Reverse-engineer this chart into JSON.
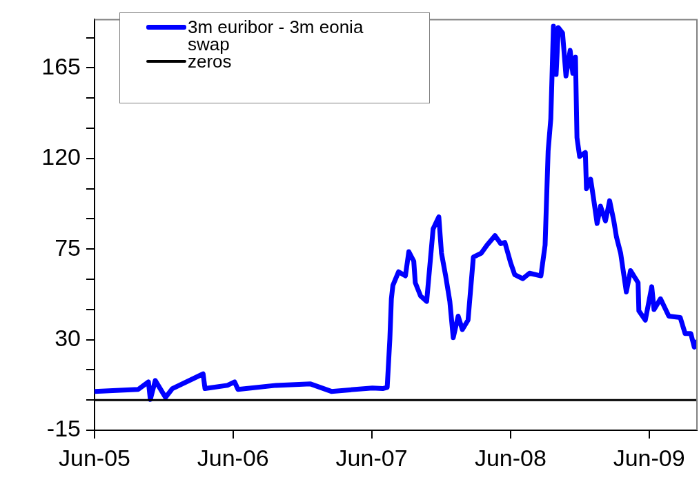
{
  "chart_data": {
    "type": "line",
    "xlim": [
      "2005-06-01",
      "2009-10-05"
    ],
    "xticks": [
      {
        "value": "2005-06-01",
        "label": "Jun-05"
      },
      {
        "value": "2006-06-01",
        "label": "Jun-06"
      },
      {
        "value": "2007-06-01",
        "label": "Jun-07"
      },
      {
        "value": "2008-06-01",
        "label": "Jun-08"
      },
      {
        "value": "2009-06-01",
        "label": "Jun-09"
      }
    ],
    "ylim": [
      -15,
      189
    ],
    "yticks": [
      -15,
      {
        "value": 0,
        "label": null
      },
      {
        "value": 15,
        "label": null
      },
      30,
      {
        "value": 45,
        "label": null
      },
      {
        "value": 60,
        "label": null
      },
      75,
      {
        "value": 90,
        "label": null
      },
      {
        "value": 105,
        "label": null
      },
      120,
      {
        "value": 135,
        "label": null
      },
      {
        "value": 150,
        "label": null
      },
      165,
      {
        "value": 180,
        "label": null
      }
    ],
    "grid": false,
    "legend": "top left",
    "marker": "none",
    "line_style": "solid",
    "annotations": [
      "swap"
    ],
    "series": [
      {
        "name": "3m euribor - 3m eonia",
        "color": "#0000ff",
        "x": [
          "2005-06-01",
          "2005-09-24",
          "2005-10-21",
          "2005-10-26",
          "2005-11-08",
          "2005-12-05",
          "2005-12-23",
          "2006-03-14",
          "2006-03-19",
          "2006-05-17",
          "2006-06-05",
          "2006-06-14",
          "2006-09-22",
          "2006-12-22",
          "2007-02-15",
          "2007-06-03",
          "2007-06-30",
          "2007-07-12",
          "2007-07-19",
          "2007-07-23",
          "2007-07-27",
          "2007-08-11",
          "2007-08-29",
          "2007-09-07",
          "2007-09-20",
          "2007-09-24",
          "2007-10-08",
          "2007-10-24",
          "2007-11-10",
          "2007-11-25",
          "2007-12-02",
          "2007-12-13",
          "2007-12-24",
          "2008-01-02",
          "2008-01-15",
          "2008-01-26",
          "2008-02-10",
          "2008-02-24",
          "2008-03-16",
          "2008-03-31",
          "2008-04-21",
          "2008-05-06",
          "2008-05-17",
          "2008-06-01",
          "2008-06-12",
          "2008-07-03",
          "2008-07-21",
          "2008-08-20",
          "2008-08-31",
          "2008-09-08",
          "2008-09-15",
          "2008-09-22",
          "2008-09-29",
          "2008-10-05",
          "2008-10-16",
          "2008-10-25",
          "2008-11-05",
          "2008-11-12",
          "2008-11-19",
          "2008-11-23",
          "2008-11-30",
          "2008-12-15",
          "2008-12-18",
          "2008-12-29",
          "2009-01-06",
          "2009-01-15",
          "2009-01-24",
          "2009-02-06",
          "2009-02-17",
          "2009-02-28",
          "2009-03-07",
          "2009-03-18",
          "2009-04-02",
          "2009-04-13",
          "2009-05-03",
          "2009-05-05",
          "2009-05-22",
          "2009-06-08",
          "2009-06-14",
          "2009-07-01",
          "2009-07-23",
          "2009-08-22",
          "2009-09-04",
          "2009-09-19",
          "2009-09-28",
          "2009-10-05"
        ],
        "values": [
          4.3,
          5.3,
          9,
          0.3,
          9.7,
          1.3,
          5.7,
          13,
          5.7,
          7.3,
          9,
          5.3,
          7.3,
          8,
          4.3,
          6,
          5.7,
          6.3,
          30.3,
          50.3,
          57,
          63.7,
          61.7,
          73.7,
          69,
          58.3,
          51.7,
          49,
          85,
          91,
          73,
          61.7,
          49,
          31,
          41.7,
          35,
          39.7,
          71,
          73,
          77,
          81.7,
          77.7,
          78.3,
          68.3,
          62.3,
          60.3,
          63,
          61.7,
          77,
          123.7,
          139.7,
          185.7,
          161.7,
          185,
          182.3,
          161,
          173.7,
          162.3,
          170.3,
          130.3,
          121,
          123,
          105,
          109.7,
          99.7,
          87.7,
          96.3,
          89,
          99,
          89,
          81,
          73,
          53.7,
          64.3,
          58.3,
          44.3,
          39.7,
          56.3,
          45,
          50.3,
          41.7,
          41,
          33,
          33,
          26.3,
          29
        ]
      },
      {
        "name": "zeros",
        "color": "#000000",
        "x": [
          "2005-06-01",
          "2009-10-05"
        ],
        "values": [
          0,
          0
        ]
      }
    ]
  }
}
